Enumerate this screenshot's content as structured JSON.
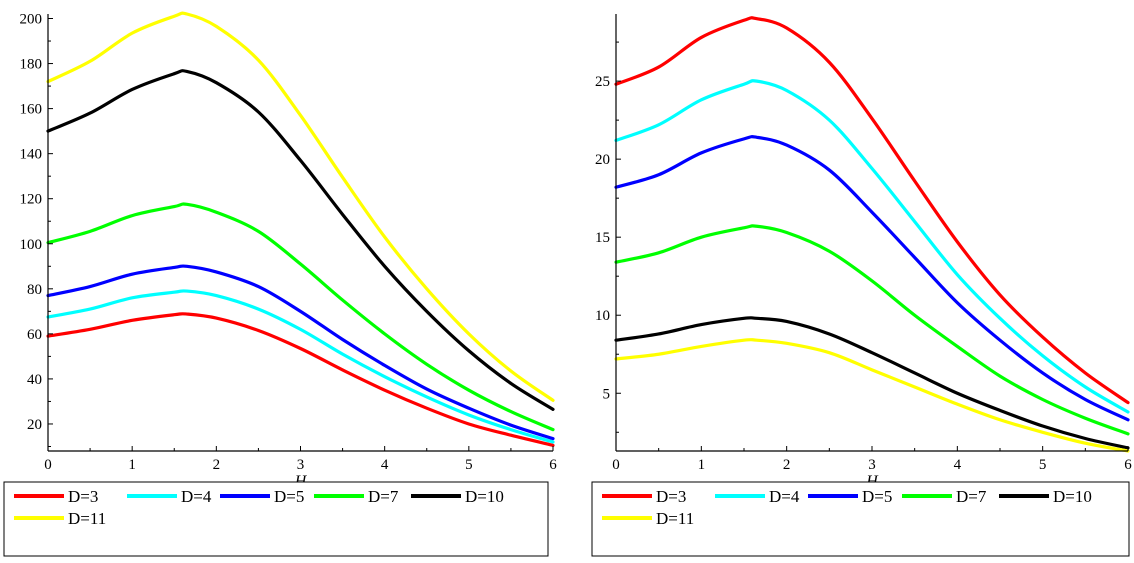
{
  "chart_data": [
    {
      "type": "line",
      "xlabel": "H",
      "ylabel": "",
      "xlim": [
        0,
        6
      ],
      "ylim": [
        8,
        202
      ],
      "xticks": [
        "0",
        "1",
        "2",
        "3",
        "4",
        "5",
        "6"
      ],
      "yticks": [
        "20",
        "40",
        "60",
        "80",
        "100",
        "120",
        "140",
        "160",
        "180",
        "200"
      ],
      "grid": false,
      "legend_position": "bottom",
      "x": [
        0,
        0.5,
        1,
        1.5,
        1.65,
        2,
        2.5,
        3,
        3.5,
        4,
        4.5,
        5,
        5.5,
        6
      ],
      "series": [
        {
          "name": "D=3",
          "color": "#ff0000",
          "values": [
            59,
            62,
            66,
            68.5,
            68.8,
            67,
            61.5,
            53.5,
            44,
            35,
            27,
            20,
            15,
            10.5
          ]
        },
        {
          "name": "D=4",
          "color": "#00ffff",
          "values": [
            67.5,
            71,
            76,
            78.5,
            79,
            77,
            71,
            62,
            51,
            41,
            32,
            24,
            17.5,
            12
          ]
        },
        {
          "name": "D=5",
          "color": "#0000ff",
          "values": [
            77,
            81,
            86.5,
            89.5,
            90,
            87.5,
            81,
            70,
            57.5,
            46,
            35.5,
            27,
            19.5,
            13.5
          ]
        },
        {
          "name": "D=7",
          "color": "#00ff00",
          "values": [
            100.5,
            105.5,
            112.5,
            116.5,
            117.5,
            114,
            105.5,
            91,
            75,
            60,
            46.5,
            35,
            25.5,
            17.5
          ]
        },
        {
          "name": "D=10",
          "color": "#000000",
          "values": [
            150,
            158,
            168.5,
            175.5,
            176.5,
            171.5,
            158.5,
            137,
            113,
            90,
            70,
            52.5,
            38,
            26.5
          ]
        },
        {
          "name": "D=11",
          "color": "#ffff00",
          "values": [
            172,
            181,
            193.5,
            201,
            202,
            196.5,
            181.5,
            157,
            129.5,
            103,
            80,
            60,
            43.5,
            30.5
          ]
        }
      ]
    },
    {
      "type": "line",
      "xlabel": "H",
      "ylabel": "",
      "xlim": [
        0,
        6
      ],
      "ylim": [
        1.3,
        29.3
      ],
      "xticks": [
        "0",
        "1",
        "2",
        "3",
        "4",
        "5",
        "6"
      ],
      "yticks": [
        "5",
        "10",
        "15",
        "20",
        "25"
      ],
      "grid": false,
      "legend_position": "bottom",
      "x": [
        0,
        0.5,
        1,
        1.5,
        1.65,
        2,
        2.5,
        3,
        3.5,
        4,
        4.5,
        5,
        5.5,
        6
      ],
      "series": [
        {
          "name": "D=3",
          "color": "#ff0000",
          "values": [
            24.8,
            25.9,
            27.8,
            28.9,
            29.0,
            28.4,
            26.2,
            22.6,
            18.6,
            14.7,
            11.3,
            8.6,
            6.3,
            4.4
          ]
        },
        {
          "name": "D=4",
          "color": "#00ffff",
          "values": [
            21.2,
            22.2,
            23.8,
            24.8,
            25.0,
            24.4,
            22.5,
            19.4,
            16.0,
            12.6,
            9.8,
            7.4,
            5.4,
            3.8
          ]
        },
        {
          "name": "D=5",
          "color": "#0000ff",
          "values": [
            18.2,
            19.0,
            20.4,
            21.3,
            21.4,
            20.9,
            19.3,
            16.6,
            13.7,
            10.8,
            8.4,
            6.3,
            4.6,
            3.3
          ]
        },
        {
          "name": "D=7",
          "color": "#00ff00",
          "values": [
            13.4,
            14.0,
            15.0,
            15.6,
            15.7,
            15.3,
            14.1,
            12.2,
            10.0,
            8.0,
            6.1,
            4.6,
            3.4,
            2.4
          ]
        },
        {
          "name": "D=10",
          "color": "#000000",
          "values": [
            8.4,
            8.8,
            9.4,
            9.8,
            9.8,
            9.6,
            8.8,
            7.6,
            6.3,
            5.0,
            3.9,
            2.9,
            2.1,
            1.5
          ]
        },
        {
          "name": "D=11",
          "color": "#ffff00",
          "values": [
            7.2,
            7.5,
            8.0,
            8.4,
            8.4,
            8.2,
            7.6,
            6.5,
            5.4,
            4.3,
            3.3,
            2.5,
            1.8,
            1.3
          ]
        }
      ]
    }
  ]
}
